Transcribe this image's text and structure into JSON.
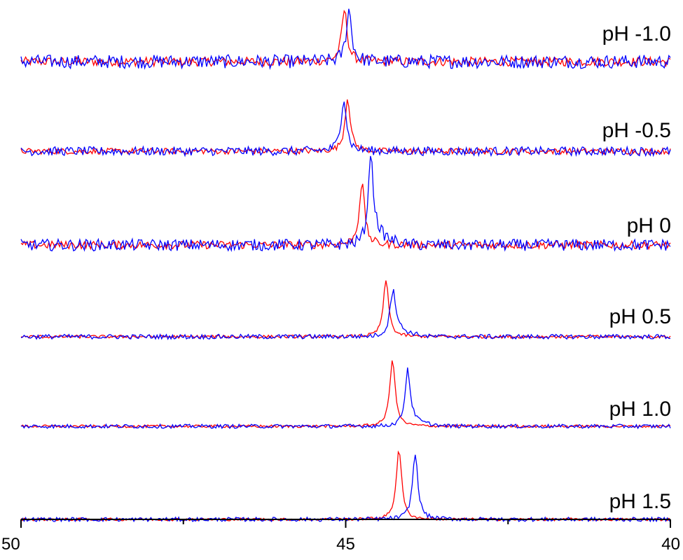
{
  "chart_data": {
    "type": "line",
    "x_axis": {
      "range": [
        50,
        40
      ],
      "reversed": true,
      "tick_labels": [
        "50",
        "45",
        "40"
      ],
      "tick_values": [
        50,
        45,
        40
      ],
      "minor_ticks": [
        47.5,
        42.5
      ]
    },
    "grid": false,
    "colors": {
      "series_a": "#ff0000",
      "series_b": "#0000ff",
      "axis": "#000000"
    },
    "traces": [
      {
        "label": "pH -1.0",
        "red_peak_x": 45.02,
        "blue_peak_x": 44.95,
        "red_peak_height": 1.0,
        "blue_peak_height": 1.0,
        "noise": 0.22,
        "blue_tail": 0.0
      },
      {
        "label": "pH -0.5",
        "red_peak_x": 44.97,
        "blue_peak_x": 45.03,
        "red_peak_height": 1.0,
        "blue_peak_height": 1.0,
        "noise": 0.14,
        "blue_tail": 0.0
      },
      {
        "label": "pH 0",
        "red_peak_x": 44.75,
        "blue_peak_x": 44.62,
        "red_peak_height": 0.82,
        "blue_peak_height": 1.0,
        "noise": 0.13,
        "blue_tail": 0.25
      },
      {
        "label": "pH 0.5",
        "red_peak_x": 44.38,
        "blue_peak_x": 44.28,
        "red_peak_height": 1.0,
        "blue_peak_height": 0.78,
        "noise": 0.07,
        "blue_tail": 0.2
      },
      {
        "label": "pH 1.0",
        "red_peak_x": 44.28,
        "blue_peak_x": 44.05,
        "red_peak_height": 1.0,
        "blue_peak_height": 0.76,
        "noise": 0.05,
        "blue_tail": 0.12
      },
      {
        "label": "pH 1.5",
        "red_peak_x": 44.18,
        "blue_peak_x": 43.93,
        "red_peak_height": 1.0,
        "blue_peak_height": 0.93,
        "noise": 0.05,
        "blue_tail": 0.0
      }
    ]
  }
}
